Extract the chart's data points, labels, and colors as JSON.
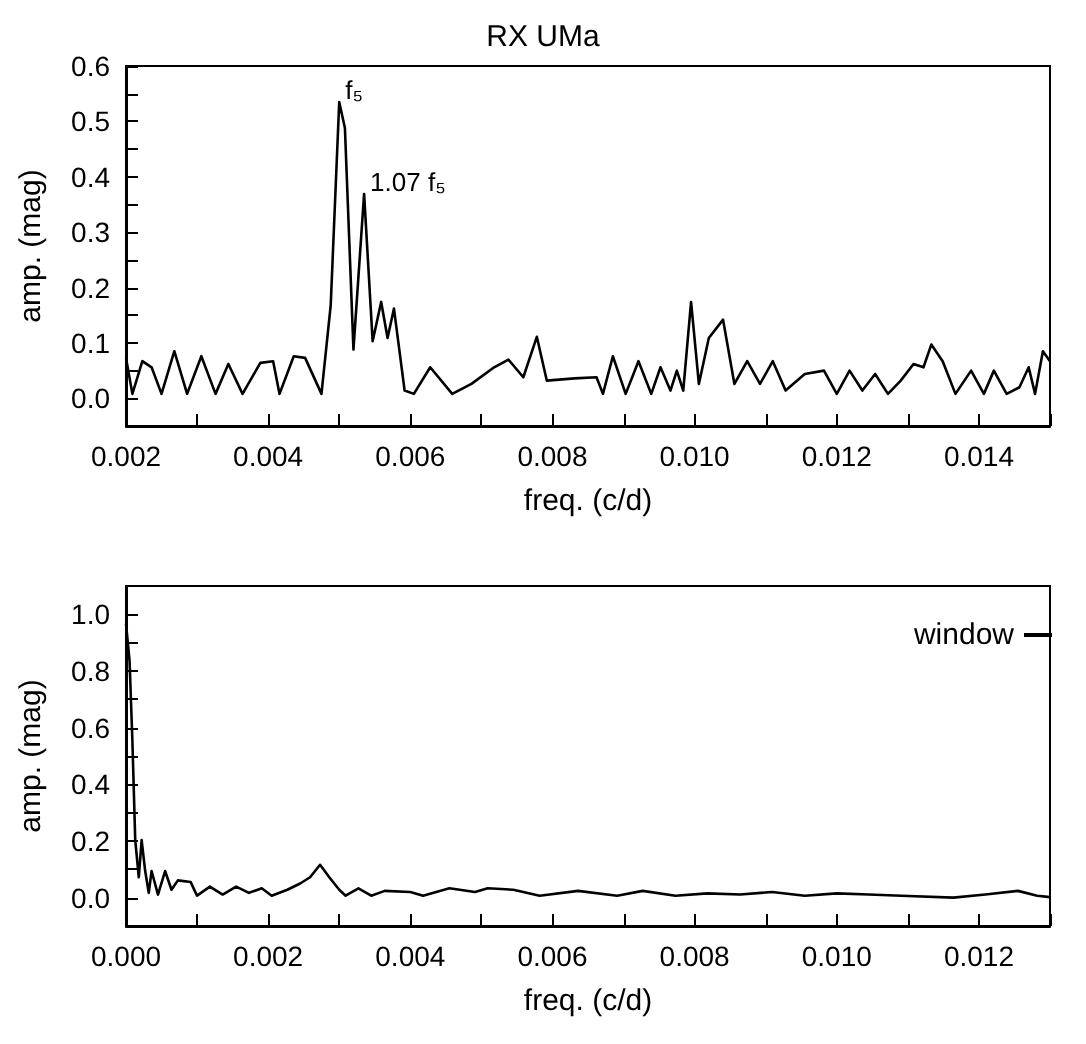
{
  "chart_data": [
    {
      "type": "line",
      "title": "RX UMa",
      "xlabel": "freq. (c/d)",
      "ylabel": "amp. (mag)",
      "grid": false,
      "legend": false,
      "marker": "none",
      "line_style": "solid",
      "xlim": [
        0.002,
        0.015
      ],
      "ylim": [
        -0.05,
        0.6
      ],
      "xticks": [
        {
          "value": 0.002,
          "label": "0.002"
        },
        {
          "value": 0.003,
          "label": null
        },
        {
          "value": 0.004,
          "label": "0.004"
        },
        {
          "value": 0.005,
          "label": null
        },
        {
          "value": 0.006,
          "label": "0.006"
        },
        {
          "value": 0.007,
          "label": null
        },
        {
          "value": 0.008,
          "label": "0.008"
        },
        {
          "value": 0.009,
          "label": null
        },
        {
          "value": 0.01,
          "label": "0.010"
        },
        {
          "value": 0.011,
          "label": null
        },
        {
          "value": 0.012,
          "label": "0.012"
        },
        {
          "value": 0.013,
          "label": null
        },
        {
          "value": 0.014,
          "label": "0.014"
        },
        {
          "value": 0.015,
          "label": null
        }
      ],
      "yticks": [
        {
          "value": 0,
          "label": "0.0"
        },
        {
          "value": 0.05,
          "label": null
        },
        0.1,
        {
          "value": 0.15,
          "label": null
        },
        0.2,
        {
          "value": 0.25,
          "label": null
        },
        0.3,
        {
          "value": 0.35,
          "label": null
        },
        0.4,
        {
          "value": 0.45,
          "label": null
        },
        0.5,
        {
          "value": 0.55,
          "label": null
        },
        0.6
      ],
      "annotations": [
        {
          "text": "f₅",
          "x": 0.005,
          "y": 0.535
        },
        {
          "text": "1.07 f₅",
          "x": 0.00535,
          "y": 0.369
        }
      ],
      "series": [
        {
          "color": "#000000",
          "x": [
            0.002,
            0.00209,
            0.00223,
            0.00236,
            0.0025,
            0.00268,
            0.00286,
            0.00306,
            0.00326,
            0.00344,
            0.00364,
            0.00389,
            0.00407,
            0.00416,
            0.00436,
            0.00452,
            0.00475,
            0.00488,
            0.005,
            0.00508,
            0.0052,
            0.00535,
            0.00547,
            0.00559,
            0.00568,
            0.00577,
            0.00592,
            0.00605,
            0.00628,
            0.00659,
            0.00686,
            0.00718,
            0.00738,
            0.00759,
            0.00778,
            0.00792,
            0.00831,
            0.00862,
            0.00871,
            0.00885,
            0.00903,
            0.00921,
            0.00939,
            0.00952,
            0.00966,
            0.00975,
            0.00984,
            0.00995,
            0.01006,
            0.0102,
            0.0104,
            0.01056,
            0.01074,
            0.01092,
            0.0111,
            0.01128,
            0.01155,
            0.01182,
            0.012,
            0.01218,
            0.01236,
            0.01254,
            0.01272,
            0.0129,
            0.01308,
            0.01322,
            0.01333,
            0.01349,
            0.01367,
            0.01389,
            0.01407,
            0.01421,
            0.01439,
            0.01457,
            0.0147,
            0.01479,
            0.0149,
            0.015
          ],
          "values": [
            0.073,
            0.008,
            0.067,
            0.056,
            0.008,
            0.085,
            0.008,
            0.076,
            0.008,
            0.062,
            0.008,
            0.064,
            0.067,
            0.008,
            0.076,
            0.073,
            0.008,
            0.168,
            0.535,
            0.488,
            0.088,
            0.369,
            0.103,
            0.174,
            0.109,
            0.162,
            0.014,
            0.008,
            0.056,
            0.008,
            0.026,
            0.056,
            0.07,
            0.038,
            0.111,
            0.032,
            0.036,
            0.038,
            0.008,
            0.076,
            0.008,
            0.067,
            0.008,
            0.056,
            0.014,
            0.05,
            0.014,
            0.174,
            0.026,
            0.109,
            0.142,
            0.026,
            0.067,
            0.026,
            0.067,
            0.014,
            0.044,
            0.05,
            0.008,
            0.05,
            0.014,
            0.044,
            0.008,
            0.032,
            0.062,
            0.056,
            0.097,
            0.067,
            0.008,
            0.05,
            0.008,
            0.05,
            0.008,
            0.02,
            0.056,
            0.008,
            0.085,
            0.067
          ]
        }
      ]
    },
    {
      "type": "line",
      "xlabel": "freq. (c/d)",
      "ylabel": "amp. (mag)",
      "grid": false,
      "legend": "top right",
      "marker": "none",
      "line_style": "solid",
      "xlim": [
        0,
        0.013
      ],
      "ylim": [
        -0.1,
        1.1
      ],
      "xticks": [
        {
          "value": 0,
          "label": "0.000"
        },
        {
          "value": 0.001,
          "label": null
        },
        {
          "value": 0.002,
          "label": "0.002"
        },
        {
          "value": 0.003,
          "label": null
        },
        {
          "value": 0.004,
          "label": "0.004"
        },
        {
          "value": 0.005,
          "label": null
        },
        {
          "value": 0.006,
          "label": "0.006"
        },
        {
          "value": 0.007,
          "label": null
        },
        {
          "value": 0.008,
          "label": "0.008"
        },
        {
          "value": 0.009,
          "label": null
        },
        {
          "value": 0.01,
          "label": "0.010"
        },
        {
          "value": 0.011,
          "label": null
        },
        {
          "value": 0.012,
          "label": "0.012"
        },
        {
          "value": 0.013,
          "label": null
        }
      ],
      "yticks": [
        {
          "value": 0,
          "label": "0.0"
        },
        {
          "value": 0.1,
          "label": null
        },
        0.2,
        {
          "value": 0.3,
          "label": null
        },
        0.4,
        {
          "value": 0.5,
          "label": null
        },
        0.6,
        {
          "value": 0.7,
          "label": null
        },
        0.8,
        {
          "value": 0.9,
          "label": null
        },
        {
          "value": 1,
          "label": "1.0"
        }
      ],
      "series": [
        {
          "name": "window",
          "color": "#000000",
          "x": [
            0,
            5e-05,
            9e-05,
            0.00013,
            0.00018,
            0.00022,
            0.00027,
            0.00032,
            0.00036,
            0.00045,
            0.00055,
            0.00064,
            0.00073,
            0.00091,
            0.001,
            0.00118,
            0.00136,
            0.00155,
            0.00173,
            0.00191,
            0.00205,
            0.00227,
            0.00245,
            0.00259,
            0.00273,
            0.00286,
            0.003,
            0.00309,
            0.00327,
            0.00345,
            0.00364,
            0.004,
            0.00418,
            0.00455,
            0.00491,
            0.00509,
            0.00545,
            0.00582,
            0.00636,
            0.00691,
            0.00727,
            0.00773,
            0.00818,
            0.00864,
            0.00909,
            0.00955,
            0.01,
            0.01045,
            0.01091,
            0.01164,
            0.01209,
            0.01255,
            0.01282,
            0.013
          ],
          "values": [
            0.967,
            0.836,
            0.552,
            0.203,
            0.072,
            0.203,
            0.094,
            0.017,
            0.094,
            0.011,
            0.094,
            0.028,
            0.061,
            0.055,
            0.007,
            0.039,
            0.011,
            0.039,
            0.017,
            0.033,
            0.007,
            0.028,
            0.05,
            0.072,
            0.116,
            0.072,
            0.028,
            0.007,
            0.033,
            0.007,
            0.024,
            0.02,
            0.007,
            0.033,
            0.02,
            0.033,
            0.028,
            0.007,
            0.024,
            0.007,
            0.024,
            0.007,
            0.015,
            0.011,
            0.02,
            0.007,
            0.015,
            0.011,
            0.007,
            0,
            0.011,
            0.024,
            0.007,
            0.002
          ]
        }
      ]
    }
  ]
}
